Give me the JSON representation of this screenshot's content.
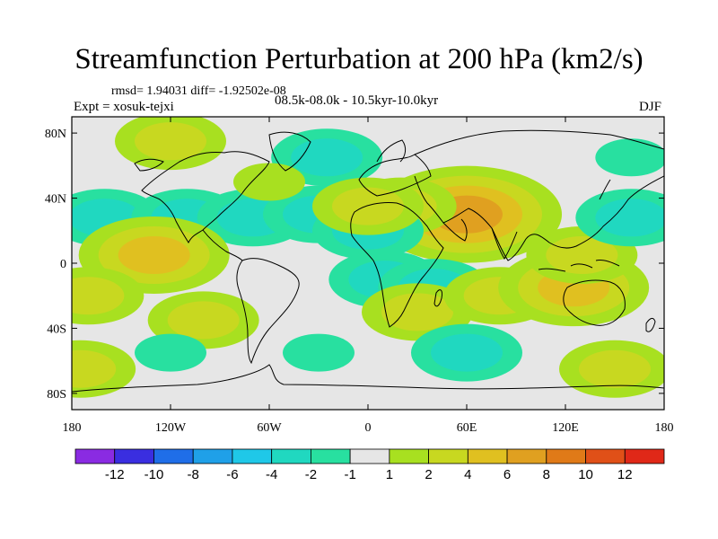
{
  "title": "Streamfunction Perturbation at 200 hPa (km2/s)",
  "stats_line": "rmsd= 1.94031 diff= -1.92502e-08",
  "experiment": "Expt = xosuk-tejxi",
  "time_range": "08.5k-08.0k - 10.5kyr-10.0kyr",
  "season": "DJF",
  "y_ticks": [
    {
      "label": "80N",
      "lat": 80
    },
    {
      "label": "40N",
      "lat": 40
    },
    {
      "label": "0",
      "lat": 0
    },
    {
      "label": "40S",
      "lat": -40
    },
    {
      "label": "80S",
      "lat": -80
    }
  ],
  "x_ticks": [
    {
      "label": "180",
      "lon": -180
    },
    {
      "label": "120W",
      "lon": -120
    },
    {
      "label": "60W",
      "lon": -60
    },
    {
      "label": "0",
      "lon": 0
    },
    {
      "label": "60E",
      "lon": 60
    },
    {
      "label": "120E",
      "lon": 120
    },
    {
      "label": "180",
      "lon": 180
    }
  ],
  "colorbar": {
    "colors": [
      "#8a2be2",
      "#3a2ee0",
      "#1f6ee8",
      "#1fa0e8",
      "#1fc8e8",
      "#20d8c0",
      "#28e0a0",
      "#e6e6e6",
      "#a8e020",
      "#c8d820",
      "#e0c020",
      "#e0a020",
      "#e07a18",
      "#e05018",
      "#e02818"
    ],
    "labels": [
      "-12",
      "-10",
      "-8",
      "-6",
      "-4",
      "-2",
      "-1",
      "1",
      "2",
      "4",
      "6",
      "8",
      "10",
      "12"
    ]
  },
  "field_anomalies": [
    {
      "lon": -160,
      "lat": 28,
      "value": -3
    },
    {
      "lon": -110,
      "lat": 28,
      "value": -3
    },
    {
      "lon": -70,
      "lat": 28,
      "value": -3
    },
    {
      "lon": -30,
      "lat": 30,
      "value": -2
    },
    {
      "lon": -25,
      "lat": 65,
      "value": -2
    },
    {
      "lon": -120,
      "lat": 75,
      "value": 2
    },
    {
      "lon": -60,
      "lat": 50,
      "value": 1.5
    },
    {
      "lon": 60,
      "lat": 30,
      "value": 6
    },
    {
      "lon": 20,
      "lat": 35,
      "value": 3
    },
    {
      "lon": 0,
      "lat": 20,
      "value": -2
    },
    {
      "lon": 10,
      "lat": -10,
      "value": -3
    },
    {
      "lon": 40,
      "lat": -15,
      "value": -2
    },
    {
      "lon": 30,
      "lat": -30,
      "value": 2
    },
    {
      "lon": 80,
      "lat": -20,
      "value": 2
    },
    {
      "lon": 125,
      "lat": -15,
      "value": 4
    },
    {
      "lon": 130,
      "lat": 5,
      "value": 2
    },
    {
      "lon": -130,
      "lat": 5,
      "value": 4
    },
    {
      "lon": -100,
      "lat": -35,
      "value": 3
    },
    {
      "lon": -170,
      "lat": -20,
      "value": 2
    },
    {
      "lon": -175,
      "lat": -65,
      "value": 2
    },
    {
      "lon": 150,
      "lat": -65,
      "value": 2
    },
    {
      "lon": -120,
      "lat": -55,
      "value": -1.5
    },
    {
      "lon": -30,
      "lat": -55,
      "value": -1.5
    },
    {
      "lon": 60,
      "lat": -55,
      "value": -2
    },
    {
      "lon": 0,
      "lat": 35,
      "value": 2
    },
    {
      "lon": 160,
      "lat": 28,
      "value": -2
    },
    {
      "lon": 160,
      "lat": 65,
      "value": -1.5
    }
  ]
}
